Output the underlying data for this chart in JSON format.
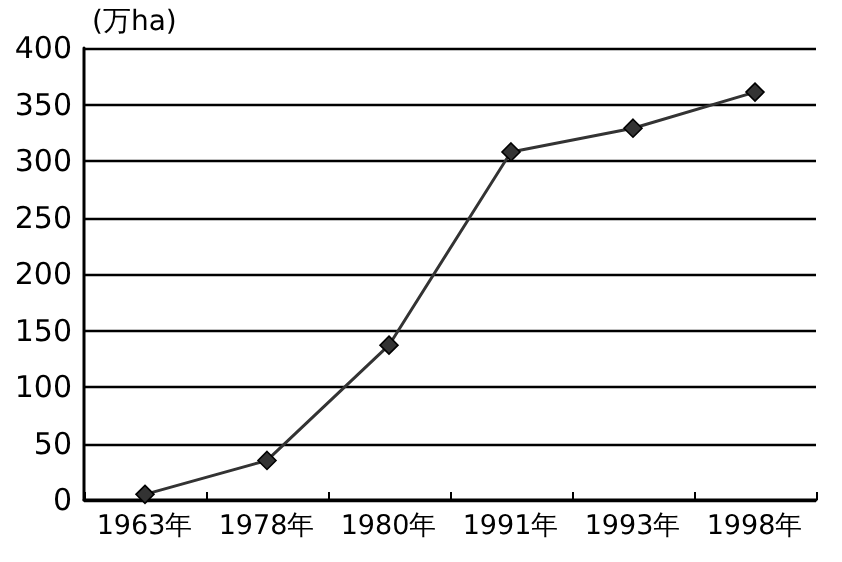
{
  "chart_data": {
    "type": "line",
    "ylabel": "(万ha)",
    "categories": [
      "1963年",
      "1978年",
      "1980年",
      "1991年",
      "1993年",
      "1998年"
    ],
    "series": [
      {
        "color": "#333333",
        "values": [
          5,
          35,
          137,
          308,
          329,
          361
        ]
      }
    ],
    "ylim": [
      0,
      400
    ],
    "yticks": [
      0,
      50,
      100,
      150,
      200,
      250,
      300,
      350,
      400
    ],
    "grid": "y",
    "marker": "diamond",
    "line_style": "solid"
  }
}
